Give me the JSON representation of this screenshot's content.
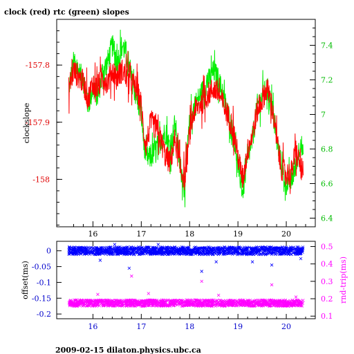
{
  "title": "clock (red) rtc (green) slopes",
  "footer": "2009-02-15 dilaton.physics.ubc.ca",
  "chart_data": [
    {
      "type": "line",
      "ylabel_left": "clockslope",
      "ylabel_right": "",
      "x_ticks": [
        "16",
        "17",
        "18",
        "19",
        "20"
      ],
      "xlim": [
        15.25,
        20.6
      ],
      "y_left_ticks": [
        "-157.8",
        "-157.9",
        "-158"
      ],
      "y_left_lim": [
        -158.083,
        -157.72
      ],
      "y_right_ticks": [
        "6.4",
        "6.6",
        "6.8",
        "7",
        "7.2",
        "7.4"
      ],
      "y_right_lim": [
        6.35,
        7.55
      ],
      "series": [
        {
          "name": "clock",
          "color": "#ff0000",
          "axis": "left",
          "x": [
            15.5,
            15.6,
            15.7,
            15.8,
            15.9,
            16.0,
            16.1,
            16.2,
            16.3,
            16.4,
            16.5,
            16.6,
            16.7,
            16.8,
            16.9,
            17.0,
            17.05,
            17.1,
            17.2,
            17.3,
            17.4,
            17.5,
            17.6,
            17.7,
            17.8,
            17.9,
            18.0,
            18.1,
            18.2,
            18.3,
            18.4,
            18.5,
            18.6,
            18.7,
            18.8,
            18.9,
            19.0,
            19.1,
            19.2,
            19.3,
            19.4,
            19.5,
            19.6,
            19.7,
            19.8,
            19.9,
            20.0,
            20.1,
            20.2,
            20.3,
            20.35
          ],
          "y": [
            -157.84,
            -157.81,
            -157.82,
            -157.83,
            -157.86,
            -157.83,
            -157.84,
            -157.82,
            -157.83,
            -157.81,
            -157.82,
            -157.81,
            -157.82,
            -157.83,
            -157.84,
            -157.87,
            -157.92,
            -157.94,
            -157.9,
            -157.91,
            -157.93,
            -157.96,
            -157.97,
            -157.93,
            -157.98,
            -158.0,
            -157.92,
            -157.88,
            -157.87,
            -157.86,
            -157.85,
            -157.84,
            -157.85,
            -157.87,
            -157.89,
            -157.91,
            -157.96,
            -158.0,
            -157.95,
            -157.92,
            -157.88,
            -157.86,
            -157.84,
            -157.87,
            -157.93,
            -157.98,
            -157.99,
            -157.99,
            -157.95,
            -157.98,
            -157.99
          ]
        },
        {
          "name": "rtc",
          "color": "#00ee00",
          "axis": "right",
          "x": [
            15.5,
            15.6,
            15.7,
            15.8,
            15.9,
            16.0,
            16.1,
            16.2,
            16.3,
            16.4,
            16.5,
            16.6,
            16.7,
            16.8,
            16.9,
            17.0,
            17.05,
            17.1,
            17.2,
            17.3,
            17.4,
            17.5,
            17.6,
            17.7,
            17.8,
            17.9,
            18.0,
            18.1,
            18.2,
            18.3,
            18.4,
            18.5,
            18.6,
            18.7,
            18.8,
            18.9,
            19.0,
            19.1,
            19.2,
            19.3,
            19.4,
            19.5,
            19.6,
            19.7,
            19.8,
            19.9,
            20.0,
            20.1,
            20.2,
            20.3,
            20.35
          ],
          "y": [
            7.15,
            7.3,
            7.25,
            7.2,
            7.05,
            7.15,
            7.1,
            7.25,
            7.3,
            7.4,
            7.3,
            7.4,
            7.35,
            7.2,
            7.1,
            7.0,
            6.85,
            6.75,
            6.75,
            6.8,
            6.85,
            6.9,
            6.8,
            6.95,
            6.7,
            6.6,
            6.95,
            7.05,
            7.1,
            7.15,
            7.2,
            7.25,
            7.2,
            7.1,
            7.0,
            6.9,
            6.7,
            6.55,
            6.75,
            6.85,
            7.05,
            7.1,
            7.15,
            7.05,
            6.85,
            6.7,
            6.6,
            6.62,
            6.7,
            6.85,
            6.75
          ]
        }
      ]
    },
    {
      "type": "scatter",
      "ylabel_left": "offset(ms)",
      "ylabel_right": "rnd-trip(ms)",
      "x_ticks": [
        "16",
        "17",
        "18",
        "19",
        "20"
      ],
      "xlim": [
        15.25,
        20.6
      ],
      "y_left_ticks": [
        "0",
        "-0.05",
        "-0.1",
        "-0.15",
        "-0.2"
      ],
      "y_left_lim": [
        -0.215,
        0.03
      ],
      "y_right_ticks": [
        "0.5",
        "0.4",
        "0.3",
        "0.2",
        "0.1"
      ],
      "y_right_lim": [
        0.085,
        0.53
      ],
      "series": [
        {
          "name": "offset",
          "color": "#0000ff",
          "axis": "left",
          "band_x": [
            15.5,
            20.35
          ],
          "band_center": 0.0,
          "band_halfwidth": 0.012,
          "outliers_x": [
            16.15,
            16.45,
            16.75,
            17.35,
            18.25,
            18.55,
            19.3,
            19.7,
            20.3
          ],
          "outliers_y": [
            -0.03,
            0.02,
            -0.055,
            0.02,
            -0.065,
            -0.035,
            -0.035,
            -0.045,
            -0.025
          ]
        },
        {
          "name": "rnd-trip",
          "color": "#ff00ff",
          "axis": "right",
          "band_x": [
            15.5,
            20.35
          ],
          "band_center": 0.175,
          "band_halfwidth": 0.018,
          "outliers_x": [
            16.1,
            16.8,
            17.15,
            18.25,
            18.6,
            19.7,
            20.2
          ],
          "outliers_y": [
            0.225,
            0.33,
            0.23,
            0.3,
            0.22,
            0.28,
            0.21
          ]
        }
      ]
    }
  ]
}
